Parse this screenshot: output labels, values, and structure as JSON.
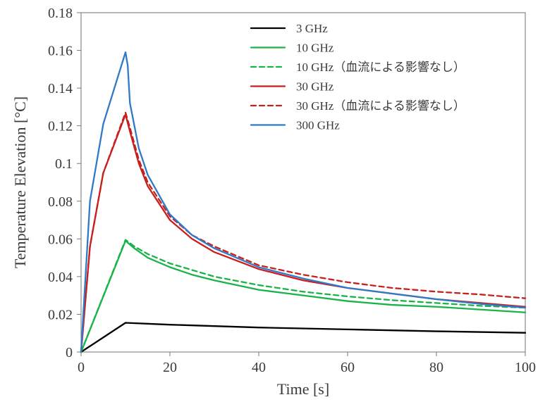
{
  "chart_data": {
    "type": "line",
    "xlabel": "Time [s]",
    "ylabel": "Temperature Elevation [°C]",
    "xlim": [
      0,
      100
    ],
    "ylim": [
      0,
      0.18
    ],
    "x_ticks": [
      "0",
      "20",
      "40",
      "60",
      "80",
      "100"
    ],
    "y_ticks": [
      "0",
      "0.02",
      "0.04",
      "0.06",
      "0.08",
      "0.1",
      "0.12",
      "0.14",
      "0.16",
      "0.18"
    ],
    "grid": false,
    "legend_position": "top-right",
    "series": [
      {
        "name": "3 GHz",
        "color": "#000000",
        "dash": "solid",
        "x": [
          0,
          10,
          20,
          40,
          60,
          80,
          100
        ],
        "y": [
          0,
          0.0155,
          0.0145,
          0.013,
          0.012,
          0.011,
          0.0102
        ]
      },
      {
        "name": "10 GHz",
        "color": "#19b34a",
        "dash": "solid",
        "x": [
          0,
          10,
          12,
          15,
          20,
          25,
          30,
          40,
          50,
          60,
          70,
          80,
          90,
          100
        ],
        "y": [
          0,
          0.059,
          0.055,
          0.05,
          0.045,
          0.041,
          0.038,
          0.033,
          0.03,
          0.027,
          0.025,
          0.024,
          0.0225,
          0.021
        ]
      },
      {
        "name": "10 GHz（血流による影響なし）",
        "color": "#19b34a",
        "dash": "dashed",
        "x": [
          0,
          10,
          12,
          15,
          20,
          25,
          30,
          40,
          50,
          60,
          70,
          80,
          90,
          100
        ],
        "y": [
          0,
          0.0595,
          0.056,
          0.052,
          0.047,
          0.0435,
          0.04,
          0.0355,
          0.032,
          0.0295,
          0.0275,
          0.026,
          0.0245,
          0.0235
        ]
      },
      {
        "name": "30 GHz",
        "color": "#c81f1f",
        "dash": "solid",
        "x": [
          0,
          2,
          5,
          10,
          11,
          13,
          15,
          20,
          25,
          30,
          40,
          50,
          60,
          70,
          80,
          90,
          100
        ],
        "y": [
          0,
          0.056,
          0.095,
          0.126,
          0.117,
          0.1,
          0.088,
          0.07,
          0.06,
          0.053,
          0.044,
          0.038,
          0.034,
          0.031,
          0.028,
          0.026,
          0.024
        ]
      },
      {
        "name": "30 GHz（血流による影響なし）",
        "color": "#c81f1f",
        "dash": "dashed",
        "x": [
          0,
          2,
          5,
          10,
          11,
          13,
          15,
          20,
          25,
          30,
          40,
          50,
          60,
          70,
          80,
          90,
          100
        ],
        "y": [
          0,
          0.056,
          0.095,
          0.127,
          0.119,
          0.102,
          0.09,
          0.072,
          0.062,
          0.056,
          0.046,
          0.041,
          0.037,
          0.034,
          0.032,
          0.0305,
          0.0285
        ]
      },
      {
        "name": "300 GHz",
        "color": "#2f7ac8",
        "dash": "solid",
        "x": [
          0,
          2,
          5,
          10,
          10.5,
          11,
          13,
          15,
          20,
          25,
          30,
          40,
          50,
          60,
          70,
          80,
          90,
          100
        ],
        "y": [
          0,
          0.08,
          0.121,
          0.159,
          0.152,
          0.132,
          0.108,
          0.094,
          0.073,
          0.062,
          0.055,
          0.045,
          0.039,
          0.034,
          0.031,
          0.028,
          0.0255,
          0.0235
        ]
      }
    ]
  }
}
